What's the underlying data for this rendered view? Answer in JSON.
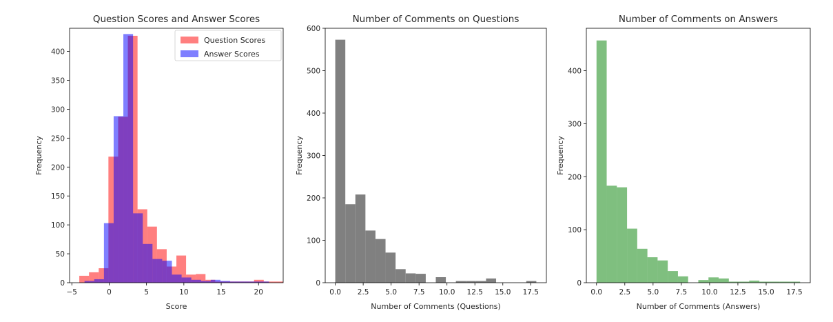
{
  "chart_data": [
    {
      "type": "histogram",
      "title": "Question Scores and Answer Scores",
      "xlabel": "Score",
      "ylabel": "Frequency",
      "xlim": [
        -5.3,
        23.3
      ],
      "ylim": [
        0,
        440
      ],
      "xticks": [
        -5,
        0,
        5,
        10,
        15,
        20
      ],
      "yticks": [
        0,
        50,
        100,
        150,
        200,
        250,
        300,
        350,
        400
      ],
      "legend": "top-right",
      "bin_width": 1.3,
      "series": [
        {
          "name": "Question Scores",
          "color": "#ff0000",
          "opacity": 0.5,
          "bin_start": -4,
          "counts": [
            12,
            18,
            25,
            218,
            287,
            427,
            127,
            97,
            58,
            28,
            47,
            14,
            15,
            5,
            2,
            2,
            2,
            2,
            5,
            2,
            2
          ]
        },
        {
          "name": "Answer Scores",
          "color": "#0000ff",
          "opacity": 0.5,
          "bin_start": -3.3,
          "counts": [
            3,
            6,
            103,
            288,
            430,
            120,
            67,
            41,
            38,
            14,
            9,
            5,
            3,
            5,
            3,
            2,
            2,
            2,
            2
          ]
        }
      ]
    },
    {
      "type": "histogram",
      "title": "Number of Comments on Questions",
      "xlabel": "Number of Comments (Questions)",
      "ylabel": "Frequency",
      "xlim": [
        -0.9,
        18.9
      ],
      "ylim": [
        0,
        600
      ],
      "xticks": [
        0.0,
        2.5,
        5.0,
        7.5,
        10.0,
        12.5,
        15.0,
        17.5
      ],
      "xtick_labels": [
        "0.0",
        "2.5",
        "5.0",
        "7.5",
        "10.0",
        "12.5",
        "15.0",
        "17.5"
      ],
      "yticks": [
        0,
        100,
        200,
        300,
        400,
        500,
        600
      ],
      "bin_width": 0.9,
      "series": [
        {
          "color": "#808080",
          "opacity": 1,
          "bin_start": 0,
          "counts": [
            573,
            185,
            208,
            123,
            103,
            71,
            32,
            22,
            21,
            0,
            13,
            0,
            4,
            4,
            4,
            10,
            0,
            0,
            0,
            4
          ]
        }
      ]
    },
    {
      "type": "histogram",
      "title": "Number of Comments on Answers",
      "xlabel": "Number of Comments (Answers)",
      "ylabel": "Frequency",
      "xlim": [
        -0.9,
        18.9
      ],
      "ylim": [
        0,
        480
      ],
      "xticks": [
        0.0,
        2.5,
        5.0,
        7.5,
        10.0,
        12.5,
        15.0,
        17.5
      ],
      "xtick_labels": [
        "0.0",
        "2.5",
        "5.0",
        "7.5",
        "10.0",
        "12.5",
        "15.0",
        "17.5"
      ],
      "yticks": [
        0,
        100,
        200,
        300,
        400
      ],
      "bin_width": 0.9,
      "series": [
        {
          "color": "#008000",
          "opacity": 0.5,
          "bin_start": 0,
          "counts": [
            457,
            183,
            180,
            102,
            64,
            48,
            42,
            22,
            12,
            0,
            5,
            10,
            8,
            2,
            2,
            4,
            2,
            2,
            2,
            2
          ]
        }
      ]
    }
  ]
}
